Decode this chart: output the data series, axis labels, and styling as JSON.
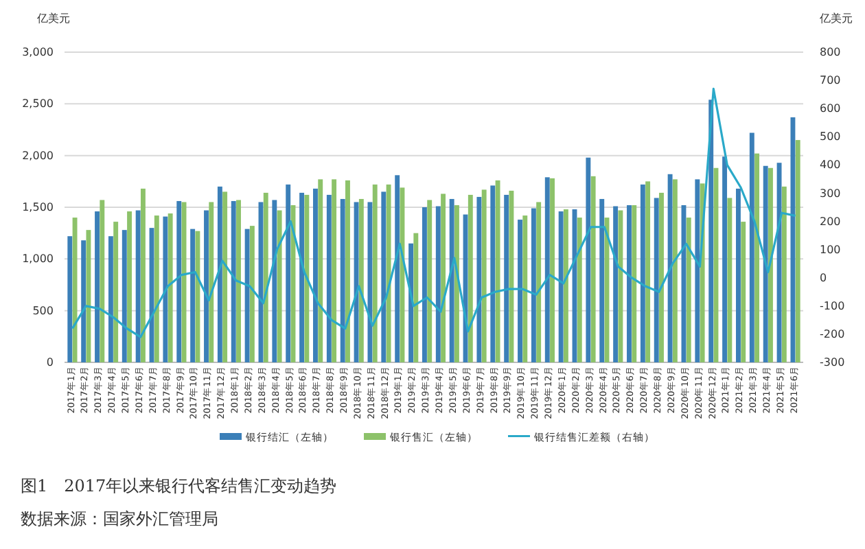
{
  "chart_data": {
    "type": "bar",
    "ylabel": "亿美元",
    "y2label": "亿美元",
    "categories": [
      "2017年1月",
      "2017年2月",
      "2017年3月",
      "2017年4月",
      "2017年5月",
      "2017年6月",
      "2017年7月",
      "2017年8月",
      "2017年9月",
      "2017年10月",
      "2017年11月",
      "2017年12月",
      "2018年1月",
      "2018年2月",
      "2018年3月",
      "2018年4月",
      "2018年5月",
      "2018年6月",
      "2018年7月",
      "2018年8月",
      "2018年9月",
      "2018年10月",
      "2018年11月",
      "2018年12月",
      "2019年1月",
      "2019年2月",
      "2019年3月",
      "2019年4月",
      "2019年5月",
      "2019年6月",
      "2019年7月",
      "2019年8月",
      "2019年9月",
      "2019年10月",
      "2019年11月",
      "2019年12月",
      "2020年1月",
      "2020年2月",
      "2020年3月",
      "2020年4月",
      "2020年5月",
      "2020年6月",
      "2020年7月",
      "2020年8月",
      "2020年9月",
      "2020年10月",
      "2020年11月",
      "2020年12月",
      "2021年1月",
      "2021年2月",
      "2021年3月",
      "2021年4月",
      "2021年5月",
      "2021年6月"
    ],
    "series": [
      {
        "name": "银行结汇（左轴）",
        "color": "#3b7fb8",
        "values": [
          1220,
          1180,
          1460,
          1220,
          1280,
          1470,
          1300,
          1410,
          1560,
          1290,
          1470,
          1700,
          1560,
          1290,
          1550,
          1570,
          1720,
          1640,
          1680,
          1620,
          1580,
          1550,
          1550,
          1650,
          1810,
          1150,
          1500,
          1510,
          1580,
          1430,
          1600,
          1710,
          1620,
          1380,
          1490,
          1790,
          1460,
          1480,
          1980,
          1580,
          1510,
          1520,
          1720,
          1590,
          1820,
          1520,
          1770,
          2540,
          1990,
          1680,
          2220,
          1900,
          1930,
          2370
        ]
      },
      {
        "name": "银行售汇（左轴）",
        "color": "#8dc26a",
        "values": [
          1400,
          1280,
          1570,
          1360,
          1460,
          1680,
          1420,
          1440,
          1550,
          1270,
          1550,
          1650,
          1570,
          1320,
          1640,
          1470,
          1520,
          1620,
          1770,
          1770,
          1760,
          1580,
          1720,
          1720,
          1690,
          1250,
          1570,
          1630,
          1520,
          1620,
          1670,
          1760,
          1660,
          1420,
          1550,
          1780,
          1480,
          1400,
          1800,
          1400,
          1470,
          1520,
          1750,
          1640,
          1770,
          1400,
          1730,
          1880,
          1590,
          1360,
          2020,
          1880,
          1700,
          2150
        ]
      },
      {
        "name": "银行结售汇差额（右轴）",
        "type": "line",
        "axis": "y2",
        "color": "#2aa9c9",
        "values": [
          -180,
          -100,
          -110,
          -140,
          -180,
          -210,
          -120,
          -30,
          10,
          20,
          -80,
          60,
          -10,
          -30,
          -90,
          100,
          200,
          20,
          -90,
          -150,
          -180,
          -30,
          -170,
          -70,
          120,
          -100,
          -70,
          -120,
          70,
          -190,
          -70,
          -50,
          -40,
          -40,
          -60,
          10,
          -20,
          80,
          180,
          180,
          40,
          0,
          -30,
          -50,
          50,
          120,
          40,
          670,
          400,
          320,
          200,
          20,
          230,
          220
        ]
      }
    ],
    "ylim": [
      0,
      3000
    ],
    "yticks": [
      0,
      500,
      {
        "value": 1000,
        "label": "1,000"
      },
      {
        "value": 1500,
        "label": "1,500"
      },
      {
        "value": 2000,
        "label": "2,000"
      },
      {
        "value": 2500,
        "label": "2,500"
      },
      {
        "value": 3000,
        "label": "3,000"
      }
    ],
    "y2lim": [
      -300,
      800
    ],
    "y2ticks": [
      -300,
      -200,
      -100,
      0,
      100,
      200,
      300,
      400,
      500,
      600,
      700,
      800
    ],
    "grid": "y",
    "legend": "bottom",
    "marker": "none",
    "annotations": [
      "图1　2017年以来银行代客结售汇变动趋势",
      "数据来源：国家外汇管理局"
    ]
  }
}
